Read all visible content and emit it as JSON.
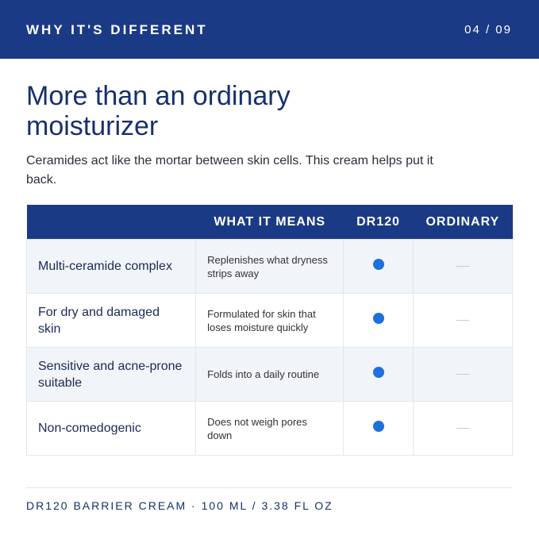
{
  "header": {
    "title": "WHY IT'S DIFFERENT",
    "page": "04 / 09"
  },
  "heading": "More than an ordinary moisturizer",
  "intro": "Ceramides act like the mortar between skin cells. This cream helps put it back.",
  "table": {
    "columns": [
      "WHAT IT MEANS",
      "DR120",
      "ORDINARY"
    ],
    "rows": [
      {
        "feature": "Multi-ceramide complex",
        "meaning": "Replenishes what dryness strips away"
      },
      {
        "feature": "For dry and damaged skin",
        "meaning": "Formulated for skin that loses moisture quickly"
      },
      {
        "feature": "Sensitive and acne-prone suitable",
        "meaning": "Folds into a daily routine"
      },
      {
        "feature": "Non-comedogenic",
        "meaning": "Does not weigh pores down"
      }
    ]
  },
  "footer": "DR120 BARRIER CREAM · 100 ML / 3.38 FL OZ"
}
